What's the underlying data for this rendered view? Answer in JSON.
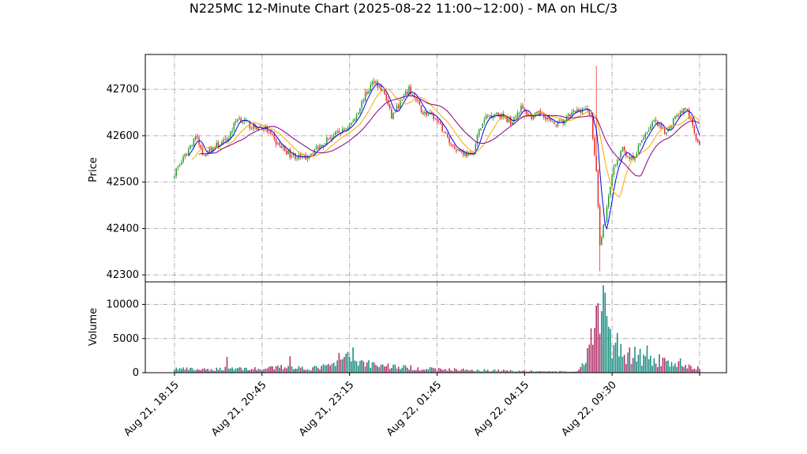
{
  "chart_data": {
    "type": "candlestick",
    "title": "N225MC 12-Minute Chart (2025-08-22 11:00~12:00) - MA on HLC/3",
    "price_axis": {
      "ylabel": "Price",
      "ylim": [
        42285,
        42775
      ],
      "ticks": [
        42300,
        42400,
        42500,
        42600,
        42700
      ]
    },
    "volume_axis": {
      "ylabel": "Volume",
      "ylim": [
        0,
        13300
      ],
      "ticks": [
        0,
        5000,
        10000
      ]
    },
    "x_ticks": [
      {
        "index": 0,
        "label": "Aug 21, 18:15"
      },
      {
        "index": 50,
        "label": "Aug 21, 20:45"
      },
      {
        "index": 100,
        "label": "Aug 21, 23:15"
      },
      {
        "index": 150,
        "label": "Aug 22, 01:45"
      },
      {
        "index": 200,
        "label": "Aug 22, 04:15"
      },
      {
        "index": 250,
        "label": "Aug 22, 09:30"
      },
      {
        "index": 300,
        "label": ""
      }
    ],
    "grid": true,
    "candle_count": 301,
    "colors": {
      "up": "#2ca02c",
      "down": "#e8302a",
      "vol_up": "#1a8c7f",
      "vol_down": "#b0306a",
      "ma_fast": "#0000ee",
      "ma_mid": "#ffa500",
      "ma_slow": "#800080"
    },
    "close_anchors": [
      [
        0,
        42520
      ],
      [
        6,
        42555
      ],
      [
        12,
        42600
      ],
      [
        16,
        42560
      ],
      [
        22,
        42575
      ],
      [
        30,
        42590
      ],
      [
        36,
        42640
      ],
      [
        44,
        42620
      ],
      [
        52,
        42615
      ],
      [
        58,
        42585
      ],
      [
        66,
        42560
      ],
      [
        74,
        42550
      ],
      [
        80,
        42570
      ],
      [
        88,
        42595
      ],
      [
        96,
        42610
      ],
      [
        102,
        42630
      ],
      [
        108,
        42680
      ],
      [
        114,
        42720
      ],
      [
        120,
        42690
      ],
      [
        124,
        42640
      ],
      [
        128,
        42665
      ],
      [
        134,
        42700
      ],
      [
        142,
        42650
      ],
      [
        148,
        42640
      ],
      [
        154,
        42610
      ],
      [
        158,
        42580
      ],
      [
        164,
        42565
      ],
      [
        170,
        42555
      ],
      [
        174,
        42610
      ],
      [
        178,
        42640
      ],
      [
        184,
        42650
      ],
      [
        192,
        42630
      ],
      [
        198,
        42660
      ],
      [
        204,
        42640
      ],
      [
        210,
        42650
      ],
      [
        216,
        42625
      ],
      [
        222,
        42630
      ],
      [
        228,
        42650
      ],
      [
        234,
        42660
      ],
      [
        238,
        42640
      ],
      [
        241,
        42520
      ],
      [
        243,
        42370
      ],
      [
        246,
        42420
      ],
      [
        250,
        42520
      ],
      [
        256,
        42570
      ],
      [
        262,
        42545
      ],
      [
        268,
        42600
      ],
      [
        274,
        42630
      ],
      [
        280,
        42605
      ],
      [
        286,
        42640
      ],
      [
        292,
        42660
      ],
      [
        296,
        42620
      ],
      [
        300,
        42575
      ]
    ],
    "volume_anchors": [
      [
        0,
        600
      ],
      [
        20,
        400
      ],
      [
        30,
        700
      ],
      [
        50,
        500
      ],
      [
        64,
        900
      ],
      [
        78,
        600
      ],
      [
        92,
        1200
      ],
      [
        98,
        2200
      ],
      [
        106,
        1600
      ],
      [
        118,
        1100
      ],
      [
        130,
        800
      ],
      [
        150,
        500
      ],
      [
        170,
        400
      ],
      [
        190,
        300
      ],
      [
        210,
        200
      ],
      [
        230,
        150
      ],
      [
        234,
        1200
      ],
      [
        238,
        4000
      ],
      [
        241,
        7000
      ],
      [
        243,
        11000
      ],
      [
        246,
        6500
      ],
      [
        250,
        3500
      ],
      [
        258,
        2500
      ],
      [
        270,
        1800
      ],
      [
        285,
        1300
      ],
      [
        300,
        600
      ]
    ],
    "volume_spikes": [
      [
        30,
        2300
      ],
      [
        66,
        2400
      ],
      [
        86,
        1100
      ],
      [
        94,
        2900
      ],
      [
        97,
        2300
      ],
      [
        102,
        3700
      ],
      [
        238,
        6500
      ],
      [
        242,
        10200
      ],
      [
        244,
        9000
      ],
      [
        245,
        12800
      ],
      [
        246,
        11700
      ],
      [
        247,
        8300
      ],
      [
        249,
        6400
      ],
      [
        253,
        5800
      ],
      [
        260,
        3700
      ],
      [
        263,
        3800
      ],
      [
        266,
        3500
      ],
      [
        270,
        4000
      ],
      [
        277,
        2700
      ],
      [
        289,
        2100
      ]
    ]
  }
}
